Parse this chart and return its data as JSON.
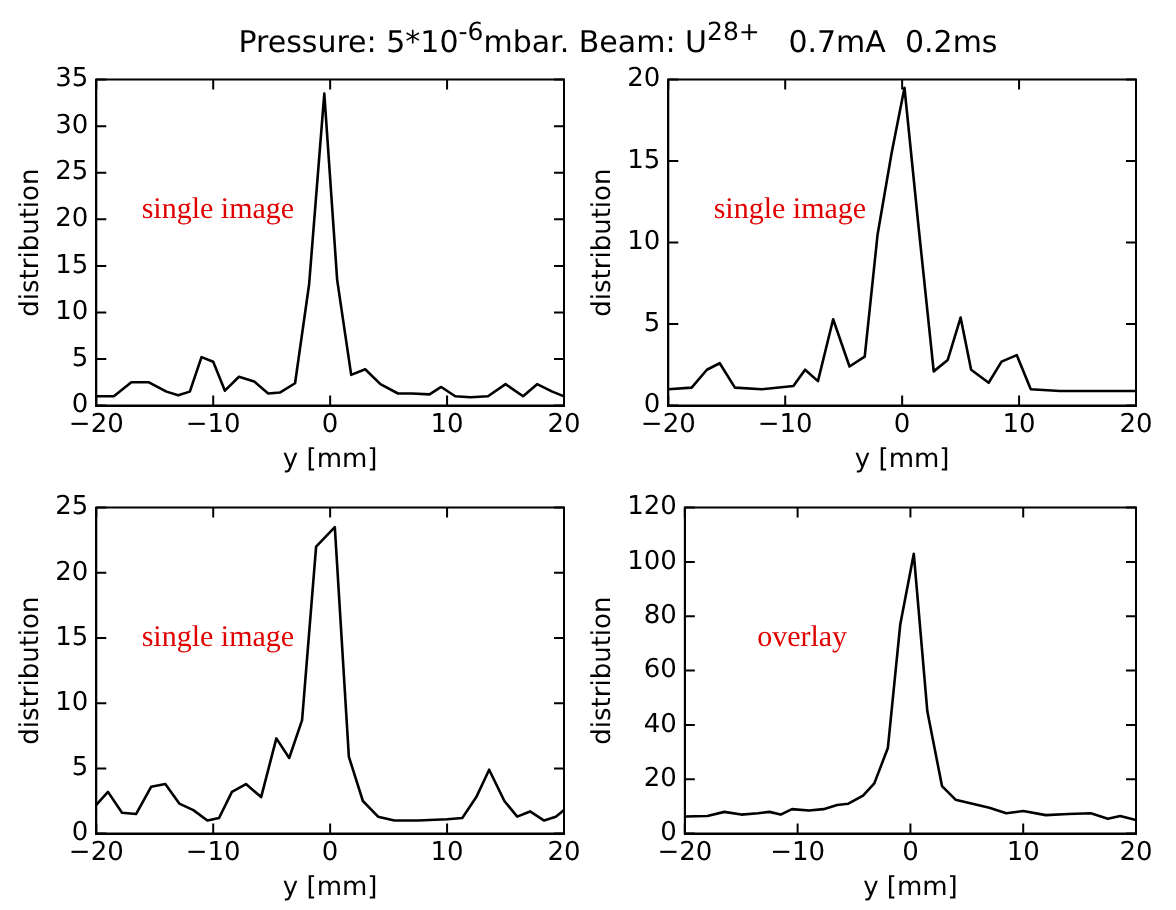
{
  "chart_data": [
    {
      "type": "line",
      "title": "Pressure: 5*10$^{-6}$mbar. Beam: U$^{28+}$   0.7mA  0.2ms",
      "xlabel": "y [mm]",
      "ylabel": "distribution",
      "annotations": [
        "single image"
      ],
      "xlim": [
        -20,
        20
      ],
      "xticks": [
        -20,
        -10,
        0,
        10,
        20
      ],
      "ylim": [
        0,
        35
      ],
      "yticks": [
        0,
        5,
        10,
        15,
        20,
        25,
        30,
        35
      ],
      "grid": false,
      "legend": false,
      "marker": "none",
      "line_style": "solid",
      "x": [
        -20,
        -18.5,
        -17,
        -15.5,
        -14,
        -13,
        -12,
        -11,
        -10,
        -9,
        -7.8,
        -6.5,
        -5.3,
        -4.3,
        -3,
        -1.8,
        -0.5,
        0.6,
        1.8,
        3,
        4.3,
        5.8,
        7,
        8.5,
        9.5,
        10.7,
        12,
        13.5,
        15,
        16.5,
        17.7,
        19,
        20
      ],
      "series": [
        {
          "color": "#000000",
          "values": [
            1,
            1,
            2.5,
            2.5,
            1.5,
            1.1,
            1.5,
            5.2,
            4.7,
            1.6,
            3.1,
            2.6,
            1.3,
            1.4,
            2.4,
            13,
            33.5,
            13.5,
            3.3,
            3.9,
            2.3,
            1.3,
            1.3,
            1.2,
            2,
            1,
            0.9,
            1,
            2.3,
            1,
            2.3,
            1.5,
            1
          ]
        }
      ]
    },
    {
      "type": "line",
      "xlabel": "y [mm]",
      "ylabel": "distribution",
      "annotations": [
        "single image"
      ],
      "xlim": [
        -20,
        20
      ],
      "xticks": [
        -20,
        -10,
        0,
        10,
        20
      ],
      "ylim": [
        0,
        20
      ],
      "yticks": [
        0,
        5,
        10,
        15,
        20
      ],
      "grid": false,
      "legend": false,
      "marker": "none",
      "line_style": "solid",
      "x": [
        -20,
        -18,
        -16.7,
        -15.6,
        -14.3,
        -12,
        -9.3,
        -8.3,
        -7.2,
        -5.9,
        -4.5,
        -3.2,
        -2.1,
        -0.9,
        0.2,
        1.4,
        2.7,
        3.9,
        5,
        5.9,
        7.4,
        8.5,
        9.8,
        11,
        13.5,
        16,
        20
      ],
      "series": [
        {
          "color": "#000000",
          "values": [
            1,
            1.1,
            2.2,
            2.6,
            1.1,
            1,
            1.2,
            2.2,
            1.5,
            5.3,
            2.4,
            3,
            10.5,
            15.5,
            19.5,
            11,
            2.1,
            2.8,
            5.4,
            2.2,
            1.4,
            2.7,
            3.1,
            1,
            0.9,
            0.9,
            0.9
          ]
        }
      ]
    },
    {
      "type": "line",
      "xlabel": "y [mm]",
      "ylabel": "distribution",
      "annotations": [
        "single image"
      ],
      "xlim": [
        -20,
        20
      ],
      "xticks": [
        -20,
        -10,
        0,
        10,
        20
      ],
      "ylim": [
        0,
        25
      ],
      "yticks": [
        0,
        5,
        10,
        15,
        20,
        25
      ],
      "grid": false,
      "legend": false,
      "marker": "none",
      "line_style": "solid",
      "x": [
        -20,
        -19,
        -17.8,
        -16.6,
        -15.3,
        -14.1,
        -12.9,
        -11.7,
        -10.5,
        -9.5,
        -8.4,
        -7.2,
        -5.9,
        -4.6,
        -3.5,
        -2.4,
        -1.2,
        0.4,
        1.6,
        2.8,
        4.1,
        5.5,
        7.5,
        10,
        11.3,
        12.5,
        13.6,
        14.9,
        16,
        17.1,
        18.3,
        19.3,
        20
      ],
      "series": [
        {
          "color": "#000000",
          "values": [
            2.2,
            3.2,
            1.6,
            1.5,
            3.6,
            3.8,
            2.3,
            1.8,
            1,
            1.2,
            3.2,
            3.8,
            2.8,
            7.3,
            5.8,
            8.7,
            22,
            23.5,
            5.9,
            2.5,
            1.3,
            1,
            1,
            1.1,
            1.2,
            2.8,
            4.9,
            2.5,
            1.3,
            1.7,
            1,
            1.3,
            1.8
          ]
        }
      ]
    },
    {
      "type": "line",
      "xlabel": "y [mm]",
      "ylabel": "distribution",
      "annotations": [
        "overlay"
      ],
      "xlim": [
        -20,
        20
      ],
      "xticks": [
        -20,
        -10,
        0,
        10,
        20
      ],
      "ylim": [
        0,
        120
      ],
      "yticks": [
        0,
        20,
        40,
        60,
        80,
        100,
        120
      ],
      "grid": false,
      "legend": false,
      "marker": "none",
      "line_style": "solid",
      "x": [
        -20,
        -18,
        -16.5,
        -15,
        -13.5,
        -12.5,
        -11.5,
        -10.5,
        -9,
        -7.7,
        -6.5,
        -5.5,
        -4.2,
        -3.2,
        -2,
        -0.9,
        0.3,
        1.5,
        2.8,
        4,
        5.5,
        7,
        8.5,
        10,
        12,
        14,
        16,
        17.5,
        18.6,
        20
      ],
      "series": [
        {
          "color": "#000000",
          "values": [
            6.3,
            6.5,
            8,
            7,
            7.5,
            8,
            7,
            9,
            8.5,
            9,
            10.5,
            11,
            14,
            18.5,
            31.5,
            77,
            103,
            45,
            17.5,
            12.5,
            11,
            9.5,
            7.5,
            8.3,
            6.8,
            7.2,
            7.5,
            5.5,
            6.5,
            5
          ]
        }
      ]
    }
  ]
}
